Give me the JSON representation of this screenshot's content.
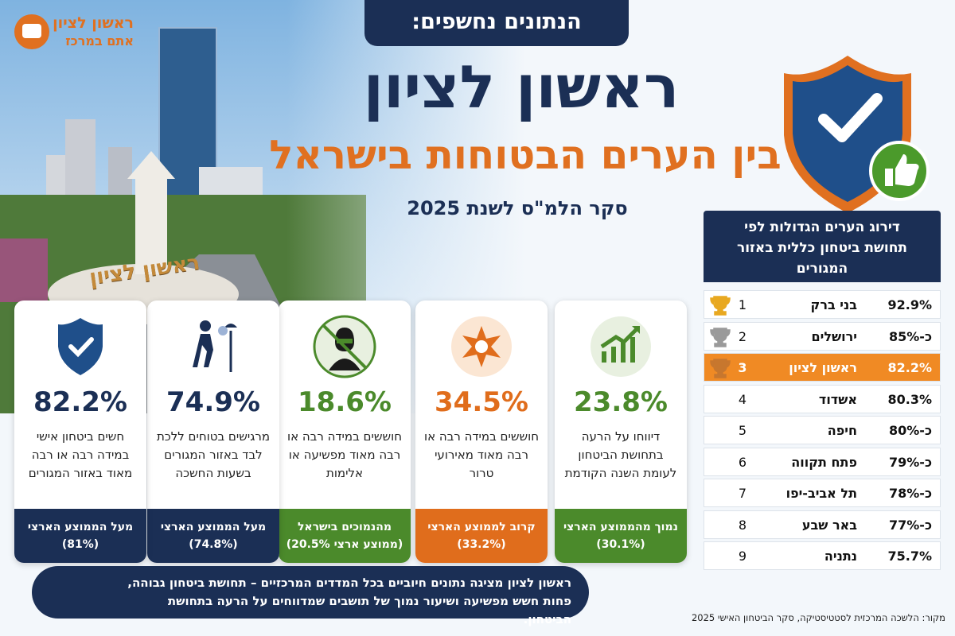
{
  "logo": {
    "name": "ראשון לציון",
    "tagline": "אתם במרכז"
  },
  "header": {
    "badge": "הנתונים נחשפים:",
    "title": "ראשון לציון",
    "subtitle": "בין הערים הבטוחות בישראל",
    "survey": "סקר הלמ\"ס לשנת 2025"
  },
  "photo_sign": "ראשון לציון",
  "cards": [
    {
      "value": "23.8%",
      "text": "דיווחו על הרעה בתחושת הביטחון לעומת השנה הקודמת",
      "footer": "נמוך מהממוצע הארצי",
      "footer_note": "(30.1%)",
      "color": "#4b8a2b"
    },
    {
      "value": "34.5%",
      "text": "חוששים במידה רבה או רבה מאוד מאירועי טרור",
      "footer": "קרוב לממוצע הארצי",
      "footer_note": "(33.2%)",
      "color": "#e06d1c"
    },
    {
      "value": "18.6%",
      "text": "חוששים במידה רבה או רבה מאוד מפשיעה או אלימות",
      "footer": "מהנמוכים בישראל",
      "footer_note": "(ממוצע ארצי 20.5%)",
      "color": "#4b8a2b"
    },
    {
      "value": "74.9%",
      "text": "מרגישים בטוחים ללכת לבד באזור המגורים בשעות החשכה",
      "footer": "מעל הממוצע הארצי",
      "footer_note": "(74.8%)",
      "color": "#1b2f55"
    },
    {
      "value": "82.2%",
      "text": "חשים ביטחון אישי במידה רבה או רבה מאוד באזור המגורים",
      "footer": "מעל הממוצע הארצי",
      "footer_note": "(81%)",
      "color": "#1b2f55"
    }
  ],
  "ranking": {
    "title": "דירוג הערים הגדולות לפי תחושת ביטחון כללית באזור המגורים",
    "rows": [
      {
        "rank": 1,
        "city": "בני ברק",
        "value": "92.9%"
      },
      {
        "rank": 2,
        "city": "ירושלים",
        "value": "כ-85%"
      },
      {
        "rank": 3,
        "city": "ראשון לציון",
        "value": "82.2%"
      },
      {
        "rank": 4,
        "city": "אשדוד",
        "value": "80.3%"
      },
      {
        "rank": 5,
        "city": "חיפה",
        "value": "כ-80%"
      },
      {
        "rank": 6,
        "city": "פתח תקווה",
        "value": "כ-79%"
      },
      {
        "rank": 7,
        "city": "תל אביב-יפו",
        "value": "כ-78%"
      },
      {
        "rank": 8,
        "city": "באר שבע",
        "value": "כ-77%"
      },
      {
        "rank": 9,
        "city": "נתניה",
        "value": "75.7%"
      }
    ]
  },
  "note": "ראשון לציון מציגה נתונים חיוביים בכל המדדים המרכזיים – תחושת ביטחון גבוהה, פחות חשש מפשיעה ושיעור נמוך של תושבים שמדווחים על הרעה בתחושת הביטחון.",
  "source": "מקור: הלשכה המרכזית לסטטיסטיקה, סקר הביטחון האישי 2025"
}
